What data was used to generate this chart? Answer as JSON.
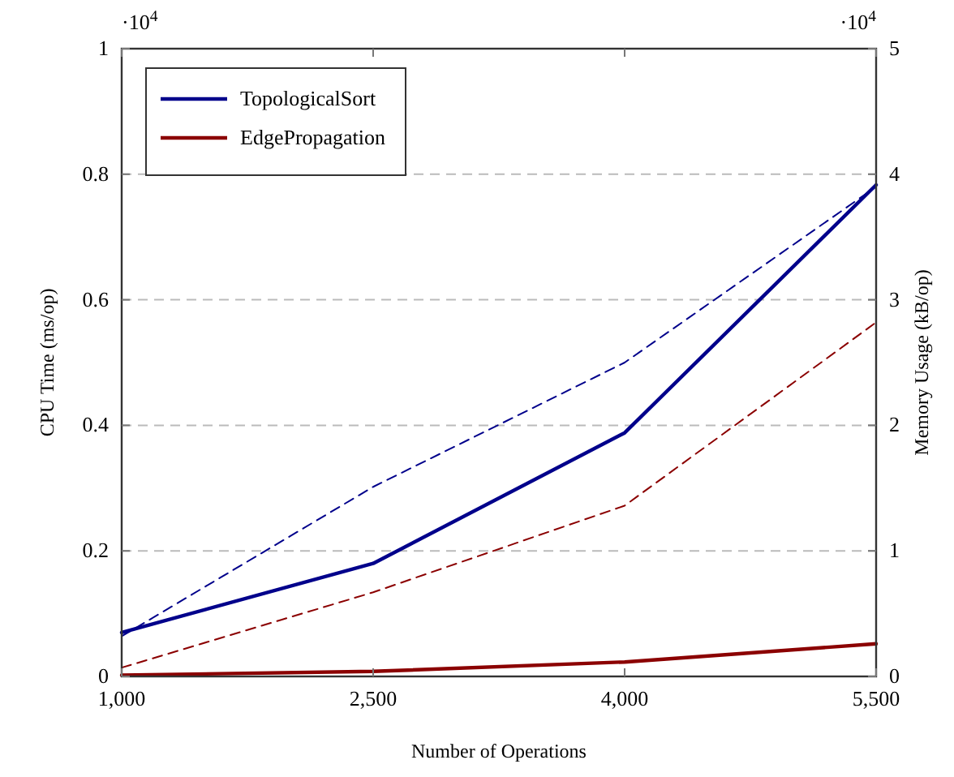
{
  "chart_data": {
    "type": "line",
    "xlabel": "Number of Operations",
    "ylabel": "CPU Time (ms/op)",
    "y2label": "Memory Usage (kB/op)",
    "annotations": [
      "·10$^{4}$",
      "·10$^{4}$"
    ],
    "x": [
      1000,
      2500,
      4000,
      5500
    ],
    "xlim": [
      1000,
      5500
    ],
    "xticks": [
      {
        "value": 1000,
        "label": "1,000"
      },
      {
        "value": 2500,
        "label": "2,500"
      },
      {
        "value": 4000,
        "label": "4,000"
      },
      {
        "value": 5500,
        "label": "5,500"
      }
    ],
    "ylim": [
      0,
      1
    ],
    "yticks": [
      0,
      0.2,
      0.4,
      0.6,
      0.8,
      1
    ],
    "y2lim": [
      0,
      5
    ],
    "y2ticks": [
      0,
      1,
      2,
      3,
      4,
      5
    ],
    "grid": "y",
    "legend": "top left",
    "marker": "none",
    "series": [
      {
        "name": "TopologicalSort",
        "color": "#00008b",
        "values": [
          0.07,
          0.18,
          0.388,
          0.783
        ],
        "line_style": "solid"
      },
      {
        "name": "EdgePropagation",
        "color": "#8b0000",
        "values": [
          0.002,
          0.008,
          0.023,
          0.052
        ],
        "line_style": "solid"
      },
      {
        "color": "#00008b",
        "values": [
          0.32,
          1.51,
          2.5,
          3.9
        ],
        "axis": "y2",
        "line_style": "dashed"
      },
      {
        "color": "#8b0000",
        "values": [
          0.07,
          0.67,
          1.36,
          2.82
        ],
        "axis": "y2",
        "line_style": "dashed"
      }
    ]
  }
}
